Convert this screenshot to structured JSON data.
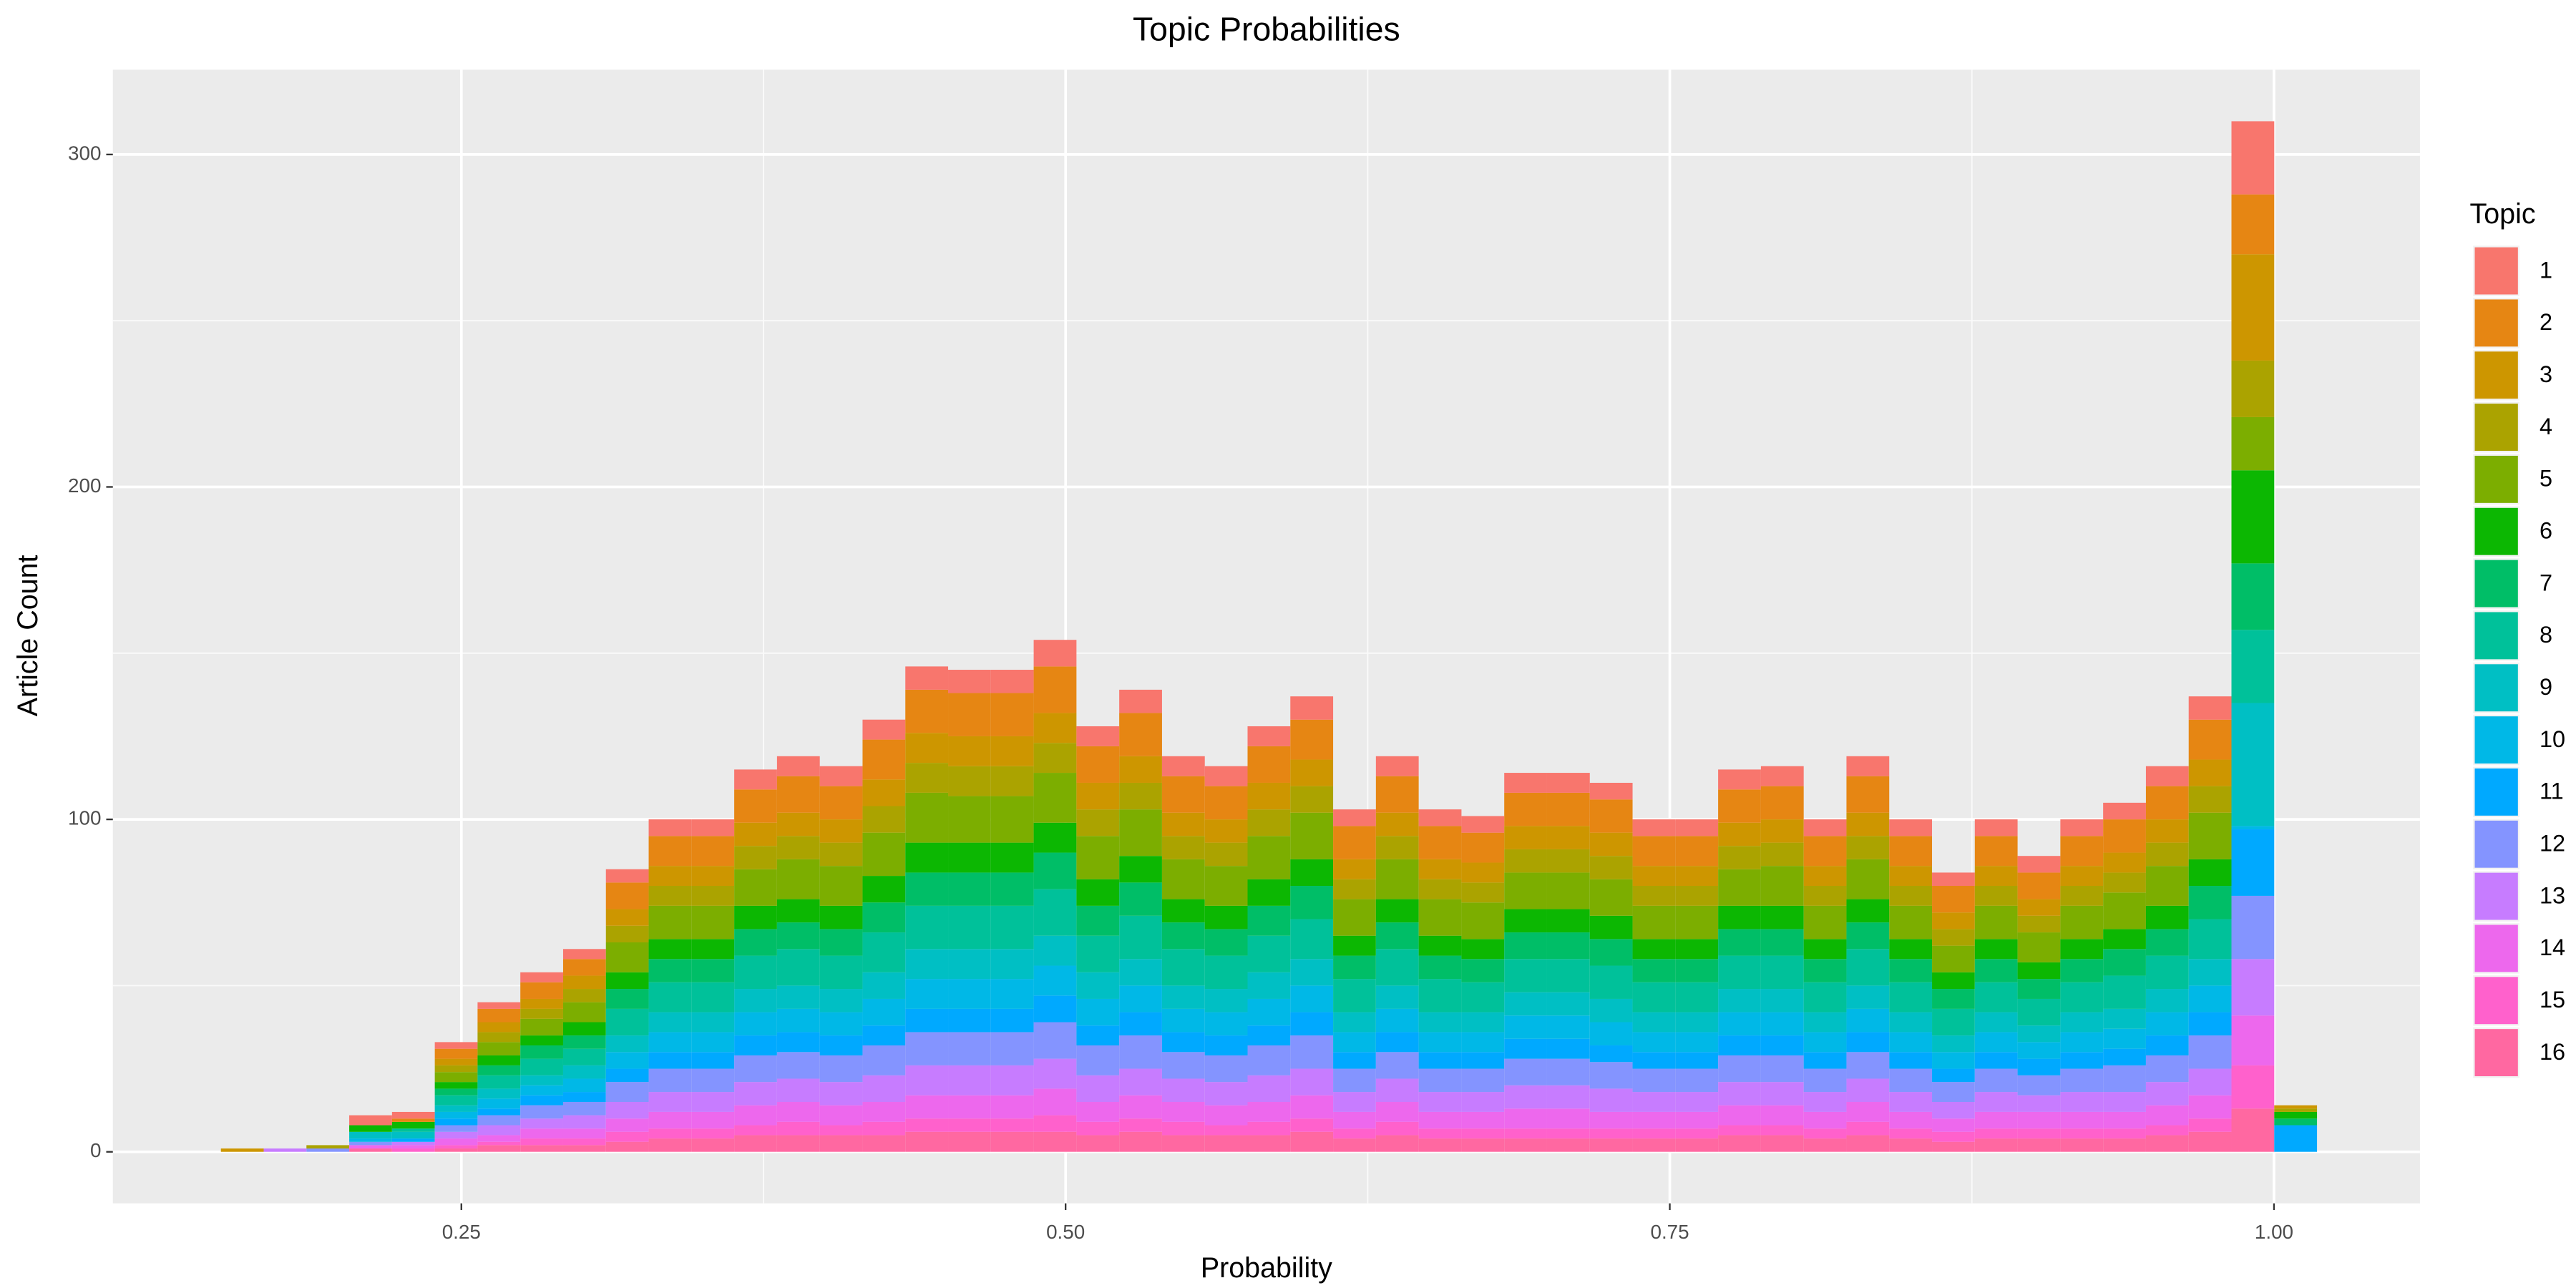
{
  "chart_data": {
    "type": "histogram",
    "title": "Topic Probabilities",
    "x_label": "Probability",
    "y_label": "Article Count",
    "legend_title": "Topic",
    "legend_position": "right",
    "grid": true,
    "stacked": true,
    "bins": [
      0.1505,
      0.1682,
      0.1859,
      0.2036,
      0.2213,
      0.239,
      0.2567,
      0.2744,
      0.2921,
      0.3098,
      0.3275,
      0.3452,
      0.3629,
      0.3806,
      0.3983,
      0.416,
      0.4337,
      0.4514,
      0.4691,
      0.4868,
      0.5045,
      0.5222,
      0.5399,
      0.5576,
      0.5753,
      0.593,
      0.6107,
      0.6284,
      0.6461,
      0.6638,
      0.6815,
      0.6992,
      0.7169,
      0.7346,
      0.7523,
      0.77,
      0.7877,
      0.8054,
      0.8231,
      0.8408,
      0.8585,
      0.8762,
      0.8939,
      0.9116,
      0.9293,
      0.947,
      0.9647,
      0.9824,
      1.0001,
      1.0178
    ],
    "xlim": [
      0.1058,
      1.0604
    ],
    "ylim": [
      -15.5,
      325.5
    ],
    "xticks": [
      {
        "value": 0.25,
        "label": "0.25"
      },
      {
        "value": 0.5,
        "label": "0.50"
      },
      {
        "value": 0.75,
        "label": "0.75"
      },
      {
        "value": 1.0,
        "label": "1.00"
      }
    ],
    "yticks": [
      0,
      100,
      200,
      300
    ],
    "series": [
      {
        "name": "1",
        "color": "#F8766D",
        "values": [
          0,
          0,
          0,
          3,
          2,
          2,
          2,
          3,
          3,
          4,
          5,
          5,
          6,
          6,
          6,
          6,
          7,
          7,
          7,
          8,
          6,
          7,
          6,
          6,
          6,
          7,
          5,
          6,
          5,
          5,
          6,
          6,
          5,
          5,
          5,
          6,
          6,
          5,
          6,
          5,
          4,
          5,
          5,
          5,
          5,
          6,
          7,
          22,
          0
        ]
      },
      {
        "name": "2",
        "color": "#E68613",
        "values": [
          0,
          0,
          0,
          0,
          1,
          3,
          4,
          5,
          5,
          8,
          9,
          9,
          10,
          11,
          10,
          12,
          13,
          13,
          13,
          14,
          11,
          13,
          11,
          10,
          11,
          12,
          10,
          11,
          10,
          9,
          10,
          10,
          10,
          9,
          9,
          10,
          10,
          9,
          11,
          9,
          8,
          9,
          8,
          9,
          10,
          10,
          12,
          18,
          0
        ]
      },
      {
        "name": "3",
        "color": "#CD9600",
        "values": [
          1,
          0,
          0,
          0,
          0,
          2,
          3,
          3,
          4,
          5,
          6,
          6,
          7,
          7,
          7,
          8,
          9,
          9,
          9,
          9,
          8,
          8,
          7,
          7,
          8,
          8,
          6,
          7,
          6,
          6,
          7,
          7,
          7,
          6,
          6,
          7,
          7,
          6,
          7,
          6,
          5,
          6,
          5,
          6,
          6,
          7,
          8,
          32,
          1
        ]
      },
      {
        "name": "4",
        "color": "#ABA300",
        "values": [
          0,
          0,
          1,
          0,
          0,
          2,
          3,
          3,
          4,
          5,
          6,
          6,
          7,
          7,
          7,
          8,
          9,
          9,
          9,
          9,
          8,
          8,
          7,
          7,
          8,
          8,
          6,
          7,
          6,
          6,
          7,
          7,
          7,
          6,
          6,
          7,
          7,
          6,
          7,
          6,
          5,
          6,
          5,
          6,
          6,
          7,
          8,
          17,
          1
        ]
      },
      {
        "name": "5",
        "color": "#7CAE00",
        "values": [
          0,
          0,
          0,
          0,
          0,
          3,
          4,
          5,
          6,
          9,
          10,
          10,
          11,
          12,
          12,
          13,
          15,
          14,
          14,
          15,
          13,
          14,
          12,
          12,
          13,
          14,
          11,
          12,
          11,
          11,
          11,
          11,
          11,
          10,
          10,
          11,
          12,
          10,
          12,
          10,
          8,
          10,
          9,
          10,
          11,
          12,
          14,
          16,
          0
        ]
      },
      {
        "name": "6",
        "color": "#0CB702",
        "values": [
          0,
          0,
          0,
          2,
          2,
          2,
          3,
          3,
          4,
          5,
          6,
          6,
          7,
          7,
          7,
          8,
          9,
          9,
          9,
          9,
          8,
          8,
          7,
          7,
          8,
          8,
          6,
          7,
          6,
          6,
          7,
          7,
          7,
          6,
          6,
          7,
          7,
          6,
          7,
          6,
          5,
          6,
          5,
          6,
          6,
          7,
          8,
          28,
          2
        ]
      },
      {
        "name": "7",
        "color": "#00BE67",
        "values": [
          0,
          0,
          0,
          0,
          0,
          2,
          3,
          4,
          4,
          6,
          7,
          7,
          8,
          8,
          8,
          9,
          10,
          10,
          10,
          11,
          9,
          10,
          8,
          8,
          9,
          10,
          7,
          8,
          7,
          7,
          8,
          8,
          8,
          7,
          7,
          8,
          8,
          7,
          8,
          7,
          6,
          7,
          6,
          7,
          8,
          8,
          10,
          20,
          2
        ]
      },
      {
        "name": "8",
        "color": "#00C19A",
        "values": [
          0,
          0,
          0,
          0,
          1,
          3,
          4,
          5,
          5,
          8,
          9,
          9,
          10,
          11,
          10,
          12,
          13,
          13,
          13,
          14,
          11,
          13,
          11,
          10,
          11,
          12,
          10,
          11,
          10,
          9,
          10,
          10,
          10,
          9,
          9,
          10,
          10,
          9,
          11,
          9,
          8,
          9,
          8,
          9,
          10,
          10,
          12,
          22,
          0
        ]
      },
      {
        "name": "9",
        "color": "#00BFC4",
        "values": [
          0,
          0,
          0,
          2,
          2,
          2,
          3,
          3,
          4,
          5,
          6,
          6,
          7,
          7,
          7,
          8,
          9,
          9,
          9,
          9,
          8,
          8,
          7,
          7,
          8,
          8,
          6,
          7,
          6,
          6,
          7,
          7,
          7,
          6,
          6,
          7,
          7,
          6,
          7,
          6,
          5,
          6,
          5,
          6,
          6,
          7,
          8,
          37,
          0
        ]
      },
      {
        "name": "10",
        "color": "#00B8E7",
        "values": [
          0,
          0,
          0,
          1,
          0,
          2,
          3,
          3,
          4,
          5,
          6,
          6,
          7,
          7,
          7,
          8,
          9,
          9,
          9,
          9,
          8,
          8,
          7,
          7,
          8,
          8,
          6,
          7,
          6,
          6,
          7,
          7,
          7,
          6,
          6,
          7,
          7,
          6,
          7,
          6,
          5,
          6,
          5,
          6,
          6,
          7,
          8,
          1,
          0
        ]
      },
      {
        "name": "11",
        "color": "#00A9FF",
        "values": [
          0,
          0,
          0,
          0,
          1,
          2,
          2,
          3,
          3,
          4,
          5,
          5,
          6,
          6,
          6,
          6,
          7,
          7,
          7,
          8,
          6,
          7,
          6,
          6,
          6,
          7,
          5,
          6,
          5,
          5,
          6,
          6,
          5,
          5,
          5,
          6,
          6,
          5,
          6,
          5,
          4,
          5,
          5,
          5,
          5,
          6,
          7,
          20,
          8
        ]
      },
      {
        "name": "12",
        "color": "#8494FF",
        "values": [
          0,
          0,
          1,
          1,
          0,
          2,
          3,
          4,
          4,
          6,
          7,
          7,
          8,
          8,
          8,
          9,
          10,
          10,
          10,
          11,
          9,
          10,
          8,
          8,
          9,
          10,
          7,
          8,
          7,
          7,
          8,
          8,
          8,
          7,
          7,
          8,
          8,
          7,
          8,
          7,
          6,
          7,
          6,
          7,
          8,
          8,
          10,
          19,
          0
        ]
      },
      {
        "name": "13",
        "color": "#C77CFF",
        "values": [
          0,
          1,
          0,
          0,
          1,
          2,
          3,
          3,
          4,
          5,
          6,
          6,
          7,
          7,
          7,
          8,
          9,
          9,
          9,
          9,
          8,
          8,
          7,
          7,
          8,
          8,
          6,
          7,
          6,
          6,
          7,
          7,
          7,
          6,
          6,
          7,
          7,
          6,
          7,
          6,
          5,
          6,
          5,
          6,
          6,
          7,
          8,
          17,
          0
        ]
      },
      {
        "name": "14",
        "color": "#ED68ED",
        "values": [
          0,
          0,
          0,
          1,
          1,
          2,
          2,
          3,
          3,
          4,
          5,
          5,
          6,
          6,
          6,
          6,
          7,
          7,
          7,
          8,
          6,
          7,
          6,
          6,
          6,
          7,
          5,
          6,
          5,
          5,
          6,
          6,
          5,
          5,
          5,
          6,
          6,
          5,
          6,
          5,
          4,
          5,
          5,
          5,
          5,
          6,
          7,
          15,
          0
        ]
      },
      {
        "name": "15",
        "color": "#FF61CC",
        "values": [
          0,
          0,
          0,
          0,
          1,
          1,
          1,
          2,
          2,
          3,
          3,
          3,
          3,
          4,
          3,
          4,
          4,
          4,
          4,
          5,
          4,
          4,
          4,
          3,
          4,
          4,
          3,
          4,
          3,
          3,
          3,
          3,
          3,
          3,
          3,
          3,
          3,
          3,
          4,
          3,
          3,
          3,
          3,
          3,
          3,
          3,
          4,
          13,
          0
        ]
      },
      {
        "name": "16",
        "color": "#FF68A1",
        "values": [
          0,
          0,
          0,
          1,
          0,
          1,
          2,
          2,
          2,
          3,
          4,
          4,
          5,
          5,
          5,
          5,
          6,
          6,
          6,
          6,
          5,
          6,
          5,
          5,
          5,
          6,
          4,
          5,
          4,
          4,
          4,
          4,
          4,
          4,
          4,
          5,
          5,
          4,
          5,
          4,
          3,
          4,
          4,
          4,
          4,
          5,
          6,
          13,
          0
        ]
      }
    ]
  }
}
